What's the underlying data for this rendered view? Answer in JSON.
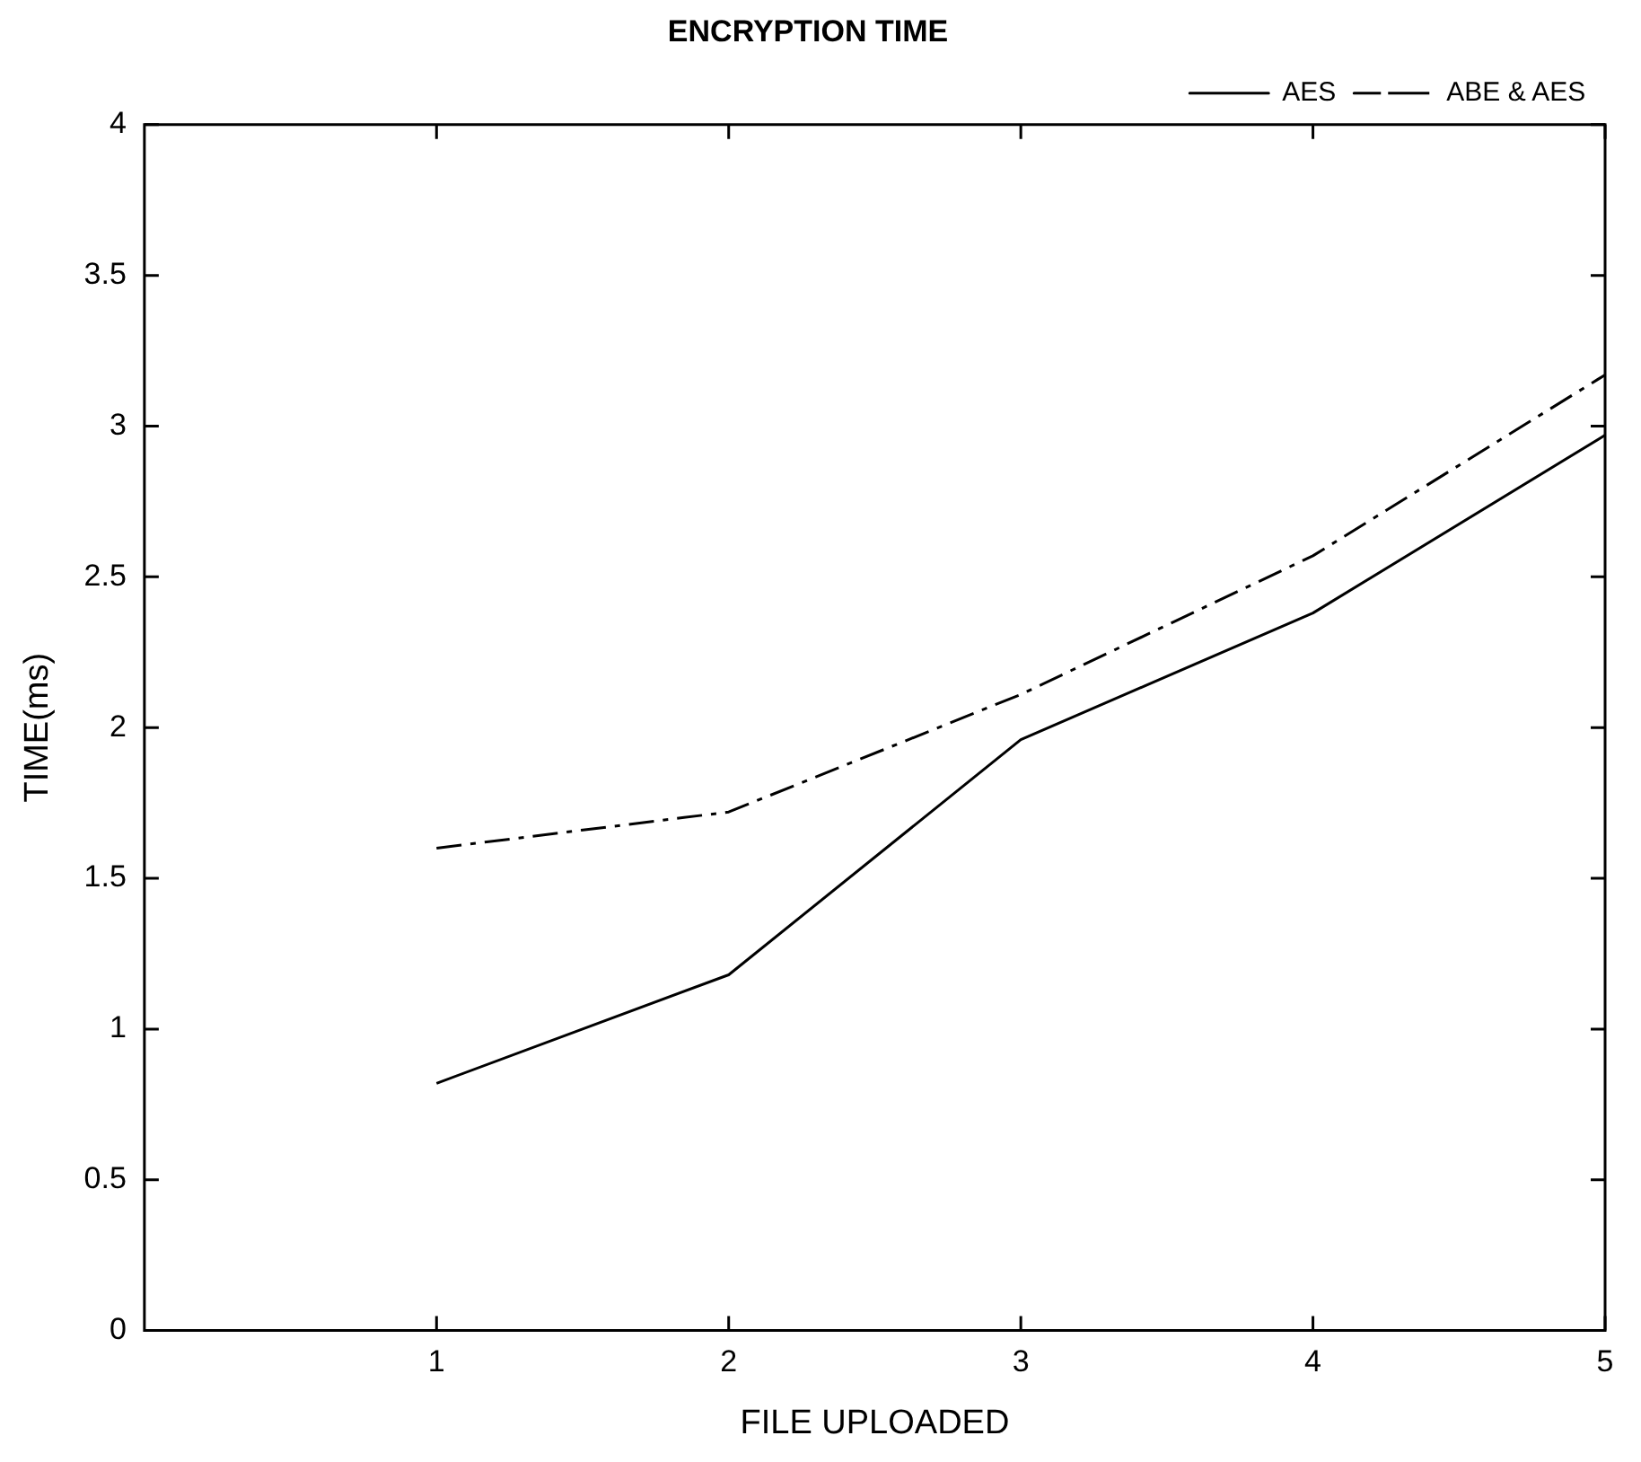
{
  "chart_data": {
    "type": "line",
    "title": "ENCRYPTION TIME",
    "xlabel": "FILE UPLOADED",
    "ylabel": "TIME(ms)",
    "x": [
      1,
      2,
      3,
      4,
      5
    ],
    "series": [
      {
        "name": "AES",
        "color": "#000000",
        "line_style": "solid",
        "values": [
          0.82,
          1.18,
          1.96,
          2.38,
          2.97
        ]
      },
      {
        "name": "ABE & AES",
        "color": "#000000",
        "line_style": "dashed",
        "values": [
          1.6,
          1.72,
          2.11,
          2.57,
          3.17
        ]
      }
    ],
    "xlim": [
      0,
      5
    ],
    "xticks": [
      1,
      2,
      3,
      4,
      5
    ],
    "ylim": [
      0,
      4
    ],
    "yticks": [
      0,
      0.5,
      1,
      1.5,
      2,
      2.5,
      3,
      3.5,
      4
    ],
    "grid": false,
    "legend": "top right",
    "marker": "none"
  }
}
